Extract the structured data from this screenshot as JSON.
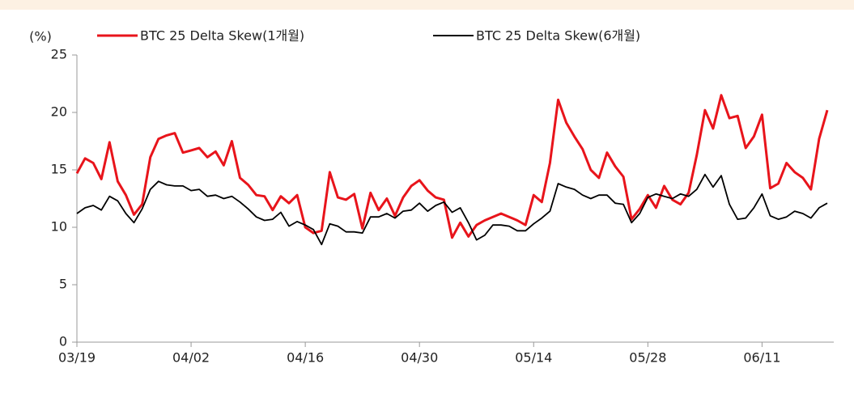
{
  "chart_data": {
    "type": "line",
    "y_label": "(%)",
    "categories": [
      "03/19",
      null,
      null,
      null,
      null,
      null,
      null,
      null,
      null,
      null,
      null,
      null,
      null,
      null,
      "04/02",
      null,
      null,
      null,
      null,
      null,
      null,
      null,
      null,
      null,
      null,
      null,
      null,
      null,
      "04/16",
      null,
      null,
      null,
      null,
      null,
      null,
      null,
      null,
      null,
      null,
      null,
      null,
      null,
      "04/30",
      null,
      null,
      null,
      null,
      null,
      null,
      null,
      null,
      null,
      null,
      null,
      null,
      null,
      "05/14",
      null,
      null,
      null,
      null,
      null,
      null,
      null,
      null,
      null,
      null,
      null,
      null,
      null,
      "05/28",
      null,
      null,
      null,
      null,
      null,
      null,
      null,
      null,
      null,
      null,
      null,
      null,
      null,
      "06/11",
      null,
      null,
      null,
      null,
      null,
      null,
      null,
      null
    ],
    "series": [
      {
        "name": "BTC 25 Delta Skew(1개월)",
        "color": "#e8141b",
        "values": [
          14.7,
          16.0,
          15.6,
          14.2,
          17.4,
          14.0,
          12.8,
          11.1,
          12.0,
          16.1,
          17.7,
          18.0,
          18.2,
          16.5,
          16.7,
          16.9,
          16.1,
          16.6,
          15.4,
          17.5,
          14.3,
          13.7,
          12.8,
          12.7,
          11.5,
          12.7,
          12.1,
          12.8,
          10.0,
          9.5,
          9.7,
          14.8,
          12.6,
          12.4,
          12.9,
          9.9,
          13.0,
          11.5,
          12.5,
          11.0,
          12.6,
          13.6,
          14.1,
          13.2,
          12.6,
          12.4,
          9.1,
          10.4,
          9.2,
          10.2,
          10.6,
          10.9,
          11.2,
          10.9,
          10.6,
          10.2,
          12.8,
          12.2,
          15.6,
          21.1,
          19.1,
          17.9,
          16.8,
          15.0,
          14.3,
          16.5,
          15.3,
          14.4,
          10.7,
          11.6,
          12.8,
          11.7,
          13.6,
          12.4,
          12.0,
          13.0,
          16.3,
          20.2,
          18.6,
          21.5,
          19.5,
          19.7,
          16.9,
          17.9,
          19.8,
          13.4,
          13.8,
          15.6,
          14.8,
          14.3,
          13.3,
          17.7,
          20.2
        ]
      },
      {
        "name": "BTC 25 Delta Skew(6개월)",
        "color": "#000000",
        "values": [
          11.2,
          11.7,
          11.9,
          11.5,
          12.7,
          12.3,
          11.2,
          10.4,
          11.6,
          13.3,
          14.0,
          13.7,
          13.6,
          13.6,
          13.2,
          13.3,
          12.7,
          12.8,
          12.5,
          12.7,
          12.2,
          11.6,
          10.9,
          10.6,
          10.7,
          11.3,
          10.1,
          10.5,
          10.2,
          9.8,
          8.5,
          10.3,
          10.1,
          9.6,
          9.6,
          9.5,
          10.9,
          10.9,
          11.2,
          10.8,
          11.4,
          11.5,
          12.1,
          11.4,
          11.9,
          12.2,
          11.3,
          11.7,
          10.4,
          8.9,
          9.3,
          10.2,
          10.2,
          10.1,
          9.7,
          9.7,
          10.3,
          10.8,
          11.4,
          13.8,
          13.5,
          13.3,
          12.8,
          12.5,
          12.8,
          12.8,
          12.1,
          12.0,
          10.4,
          11.2,
          12.6,
          12.9,
          12.7,
          12.5,
          12.9,
          12.7,
          13.3,
          14.6,
          13.5,
          14.5,
          12.0,
          10.7,
          10.8,
          11.7,
          12.9,
          11.0,
          10.7,
          10.9,
          11.4,
          11.2,
          10.8,
          11.7,
          12.1
        ]
      }
    ],
    "ylim": [
      0,
      25
    ],
    "yticks": [
      0,
      5,
      10,
      15,
      20,
      25
    ],
    "grid": false
  }
}
